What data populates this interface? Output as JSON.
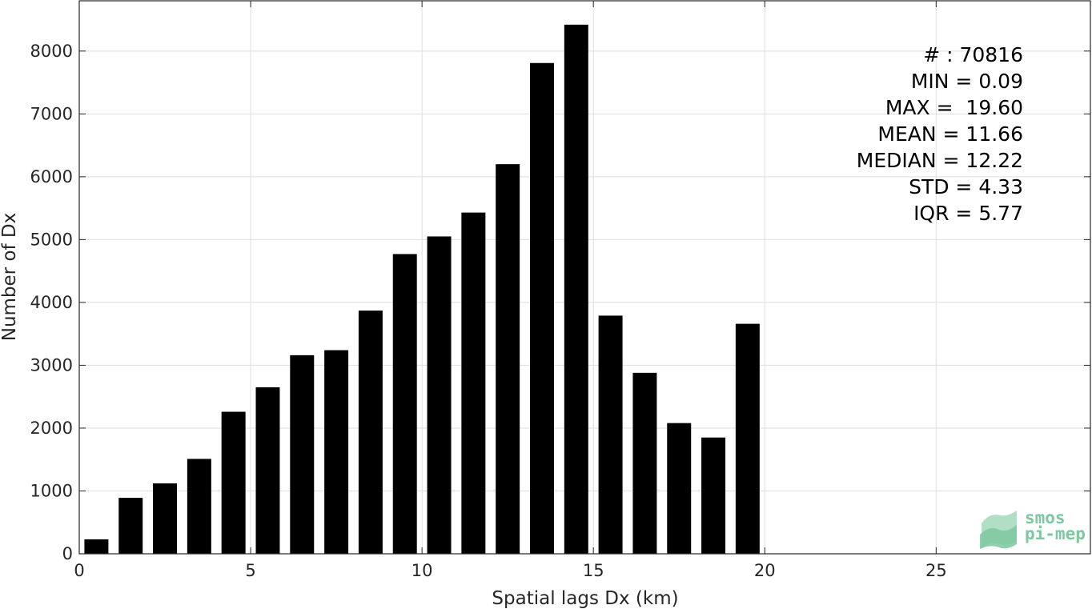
{
  "chart_data": {
    "type": "bar",
    "xlabel": "Spatial lags Dx (km)",
    "ylabel": "Number of Dx",
    "title": "",
    "xlim": [
      0,
      29.5
    ],
    "ylim": [
      0,
      8800
    ],
    "xticks": [
      0,
      5,
      10,
      15,
      20,
      25
    ],
    "yticks": [
      0,
      1000,
      2000,
      3000,
      4000,
      5000,
      6000,
      7000,
      8000
    ],
    "grid": true,
    "bar_color": "#000000",
    "bin_width": 1,
    "bar_width_fraction": 0.7,
    "x": [
      0.5,
      1.5,
      2.5,
      3.5,
      4.5,
      5.5,
      6.5,
      7.5,
      8.5,
      9.5,
      10.5,
      11.5,
      12.5,
      13.5,
      14.5,
      15.5,
      16.5,
      17.5,
      18.5,
      19.5
    ],
    "values": [
      230,
      890,
      1120,
      1510,
      2260,
      2650,
      3160,
      3240,
      3870,
      4770,
      5050,
      5430,
      6200,
      7810,
      8420,
      3790,
      2880,
      2080,
      1850,
      3660
    ]
  },
  "stats": [
    "# : 70816",
    "MIN = 0.09",
    "MAX =  19.60",
    "MEAN = 11.66",
    "MEDIAN = 12.22",
    "STD = 4.33",
    "IQR = 5.77"
  ],
  "logo": {
    "line1": "smos",
    "line2": "pi-mep",
    "color_light": "#a8dcc0",
    "color_mid": "#7cc8a0",
    "color_dark": "#4d9e78"
  }
}
